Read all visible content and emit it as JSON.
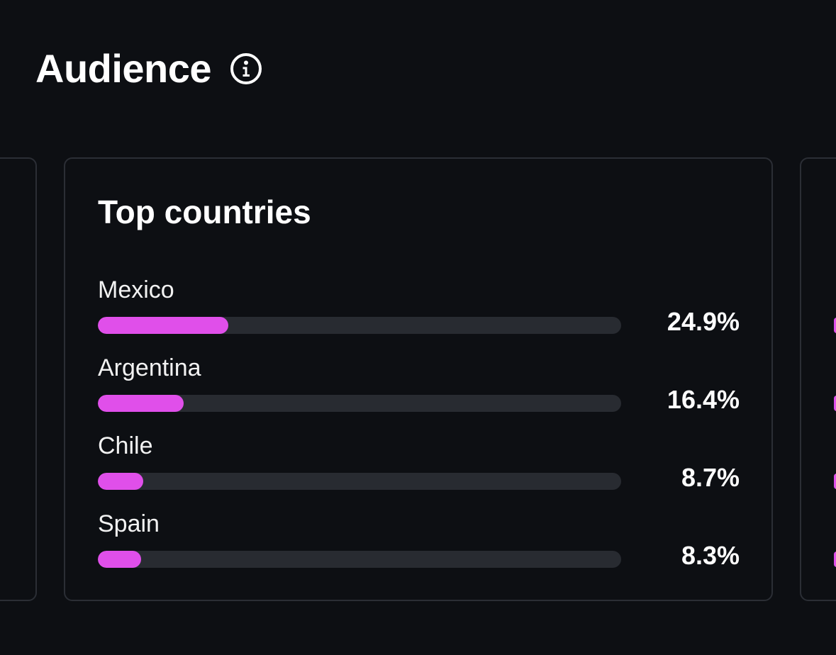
{
  "header": {
    "title": "Audience",
    "info_icon": "info-icon"
  },
  "top_countries": {
    "title": "Top countries",
    "accent_color": "#e04fea",
    "track_color": "#282b31",
    "items": [
      {
        "label": "Mexico",
        "value": "24.9%",
        "percent": 24.9
      },
      {
        "label": "Argentina",
        "value": "16.4%",
        "percent": 16.4
      },
      {
        "label": "Chile",
        "value": "8.7%",
        "percent": 8.7
      },
      {
        "label": "Spain",
        "value": "8.3%",
        "percent": 8.3
      }
    ]
  }
}
